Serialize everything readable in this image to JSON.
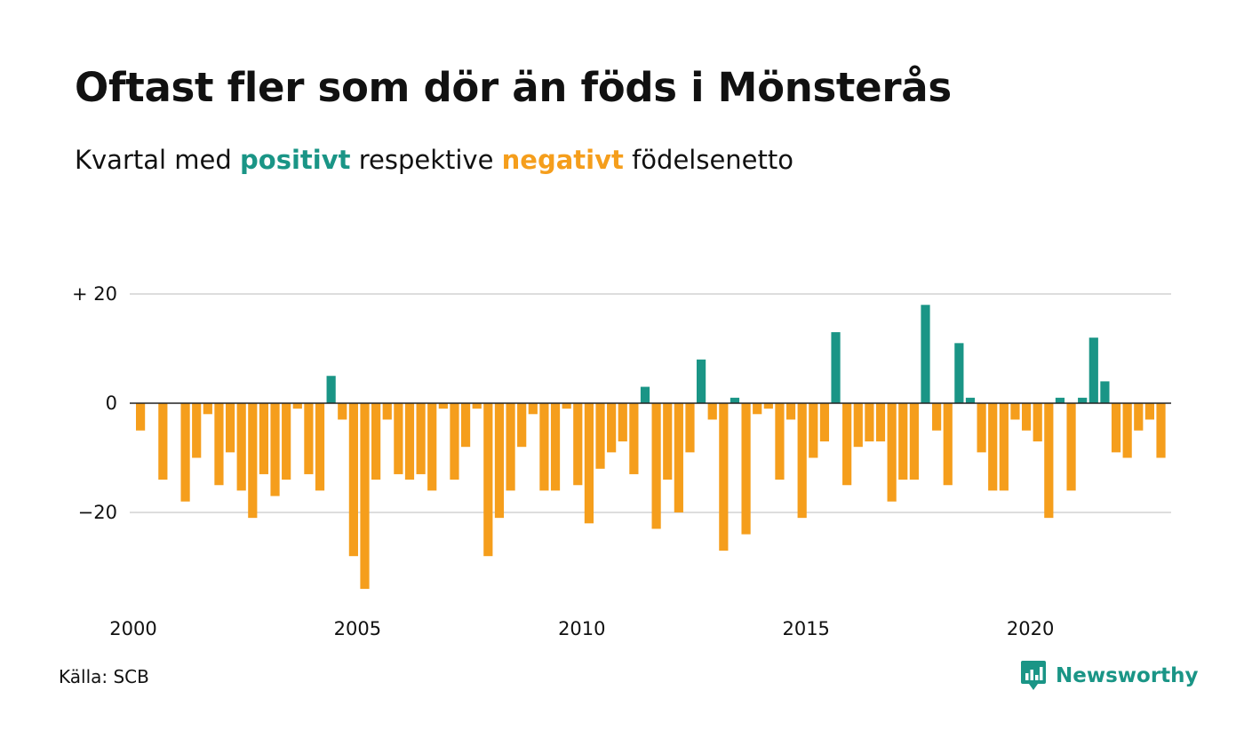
{
  "title": "Oftast fler som dör än föds i Mönsterås",
  "subtitle": {
    "prefix": "Kvartal med",
    "positive_word": "positivt",
    "middle": "respektive",
    "negative_word": "negativt",
    "suffix": "födelsenetto"
  },
  "source": "Källa: SCB",
  "brand": {
    "name": "Newsworthy",
    "icon": "newsworthy-logo-icon"
  },
  "colors": {
    "positive": "#1a9586",
    "negative": "#f59e1c",
    "grid": "#dddddd",
    "zero_line": "#222222"
  },
  "chart_data": {
    "type": "bar",
    "title": "Oftast fler som dör än föds i Mönsterås",
    "subtitle": "Kvartal med positivt respektive negativt födelsenetto",
    "x_start_year": 2000,
    "x_unit": "quarter",
    "x_ticks": [
      "2000",
      "2005",
      "2010",
      "2015",
      "2020"
    ],
    "y_ticks": [
      {
        "value": 20,
        "label": "+ 20"
      },
      {
        "value": 0,
        "label": "0"
      },
      {
        "value": -20,
        "label": "−20"
      }
    ],
    "ylim": [
      -38,
      30
    ],
    "grid": true,
    "series": [
      {
        "values": [
          -5,
          0,
          -14,
          0,
          -18,
          -10,
          -2,
          -15,
          -9,
          -16,
          -21,
          -13,
          -17,
          -14,
          -1,
          -13,
          -16,
          5,
          -3,
          -28,
          -34,
          -14,
          -3,
          -13,
          -14,
          -13,
          -16,
          -1,
          -14,
          -8,
          -1,
          -28,
          -21,
          -16,
          -8,
          -2,
          -16,
          -16,
          -1,
          -15,
          -22,
          -12,
          -9,
          -7,
          -13,
          3,
          -23,
          -14,
          -20,
          -9,
          8,
          -3,
          -27,
          1,
          -24,
          -2,
          -1,
          -14,
          -3,
          -21,
          -10,
          -7,
          13,
          -15,
          -8,
          -7,
          -7,
          -18,
          -14,
          -14,
          18,
          -5,
          -15,
          11,
          1,
          -9,
          -16,
          -16,
          -3,
          -5,
          -7,
          -21,
          1,
          -16,
          1,
          12,
          4,
          -9,
          -10,
          -5,
          -3,
          -10
        ]
      }
    ]
  }
}
